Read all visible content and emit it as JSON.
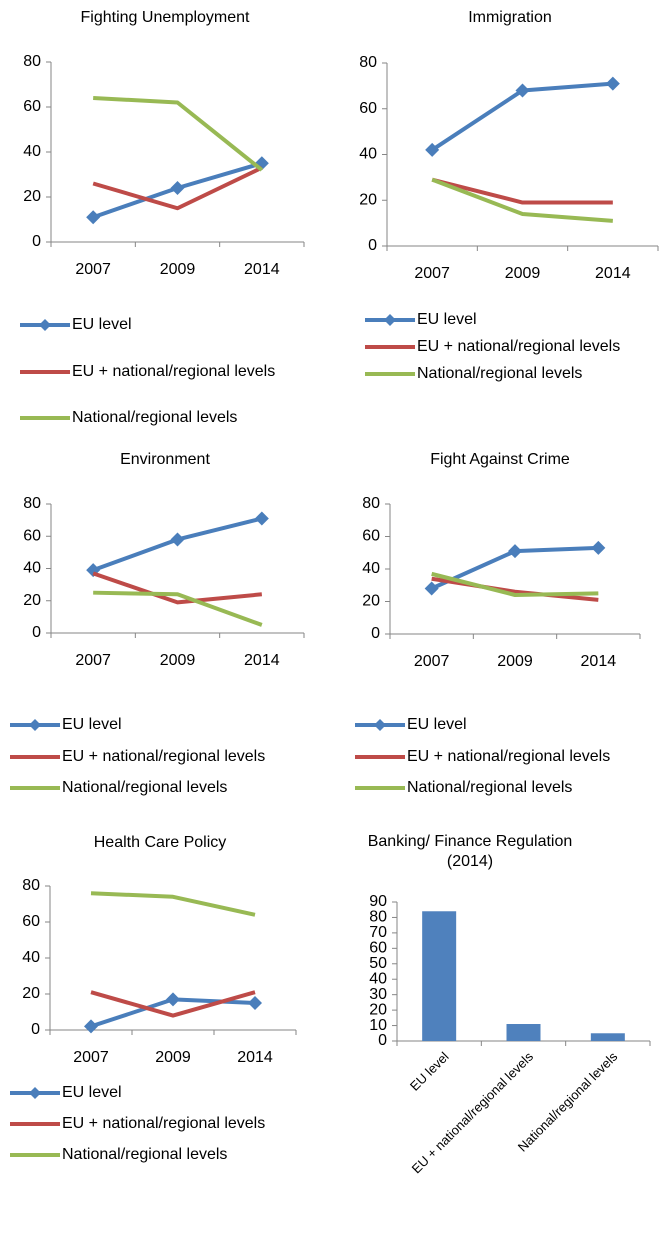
{
  "chart_data": [
    {
      "type": "line",
      "title": "Fighting Unemployment",
      "categories": [
        "2007",
        "2009",
        "2014"
      ],
      "ylim": [
        0,
        80
      ],
      "yticks": [
        0,
        20,
        40,
        60,
        80
      ],
      "series": [
        {
          "name": "EU level",
          "color": "#4a7ebb",
          "marker": "diamond",
          "values": [
            11,
            24,
            35
          ]
        },
        {
          "name": "EU + national/regional levels",
          "color": "#be4b48",
          "values": [
            26,
            15,
            33
          ]
        },
        {
          "name": "National/regional levels",
          "color": "#98b954",
          "values": [
            64,
            62,
            32
          ]
        }
      ]
    },
    {
      "type": "line",
      "title": "Immigration",
      "categories": [
        "2007",
        "2009",
        "2014"
      ],
      "ylim": [
        0,
        80
      ],
      "yticks": [
        0,
        20,
        40,
        60,
        80
      ],
      "series": [
        {
          "name": "EU level",
          "color": "#4a7ebb",
          "marker": "diamond",
          "values": [
            42,
            68,
            71
          ]
        },
        {
          "name": "EU + national/regional levels",
          "color": "#be4b48",
          "values": [
            29,
            19,
            19
          ]
        },
        {
          "name": "National/regional levels",
          "color": "#98b954",
          "values": [
            29,
            14,
            11
          ]
        }
      ]
    },
    {
      "type": "line",
      "title": "Environment",
      "categories": [
        "2007",
        "2009",
        "2014"
      ],
      "ylim": [
        0,
        80
      ],
      "yticks": [
        0,
        20,
        40,
        60,
        80
      ],
      "series": [
        {
          "name": "EU level",
          "color": "#4a7ebb",
          "marker": "diamond",
          "values": [
            39,
            58,
            71
          ]
        },
        {
          "name": "EU + national/regional levels",
          "color": "#be4b48",
          "values": [
            37,
            19,
            24
          ]
        },
        {
          "name": "National/regional levels",
          "color": "#98b954",
          "values": [
            25,
            24,
            5
          ]
        }
      ]
    },
    {
      "type": "line",
      "title": "Fight Against Crime",
      "categories": [
        "2007",
        "2009",
        "2014"
      ],
      "ylim": [
        0,
        80
      ],
      "yticks": [
        0,
        20,
        40,
        60,
        80
      ],
      "series": [
        {
          "name": "EU level",
          "color": "#4a7ebb",
          "marker": "diamond",
          "values": [
            28,
            51,
            53
          ]
        },
        {
          "name": "EU + national/regional levels",
          "color": "#be4b48",
          "values": [
            34,
            26,
            21
          ]
        },
        {
          "name": "National/regional levels",
          "color": "#98b954",
          "values": [
            37,
            24,
            25
          ]
        }
      ]
    },
    {
      "type": "line",
      "title": "Health Care Policy",
      "categories": [
        "2007",
        "2009",
        "2014"
      ],
      "ylim": [
        0,
        80
      ],
      "yticks": [
        0,
        20,
        40,
        60,
        80
      ],
      "series": [
        {
          "name": "EU level",
          "color": "#4a7ebb",
          "marker": "diamond",
          "values": [
            2,
            17,
            15
          ]
        },
        {
          "name": "EU + national/regional levels",
          "color": "#be4b48",
          "values": [
            21,
            8,
            21
          ]
        },
        {
          "name": "National/regional levels",
          "color": "#98b954",
          "values": [
            76,
            74,
            64
          ]
        }
      ]
    },
    {
      "type": "bar",
      "title": "Banking/ Finance Regulation (2014)",
      "categories": [
        "EU level",
        "EU + national/regional levels",
        "National/regional levels"
      ],
      "values": [
        84,
        11,
        5
      ],
      "color": "#4f81bd",
      "ylim": [
        0,
        90
      ],
      "yticks": [
        0,
        10,
        20,
        30,
        40,
        50,
        60,
        70,
        80,
        90
      ]
    }
  ]
}
